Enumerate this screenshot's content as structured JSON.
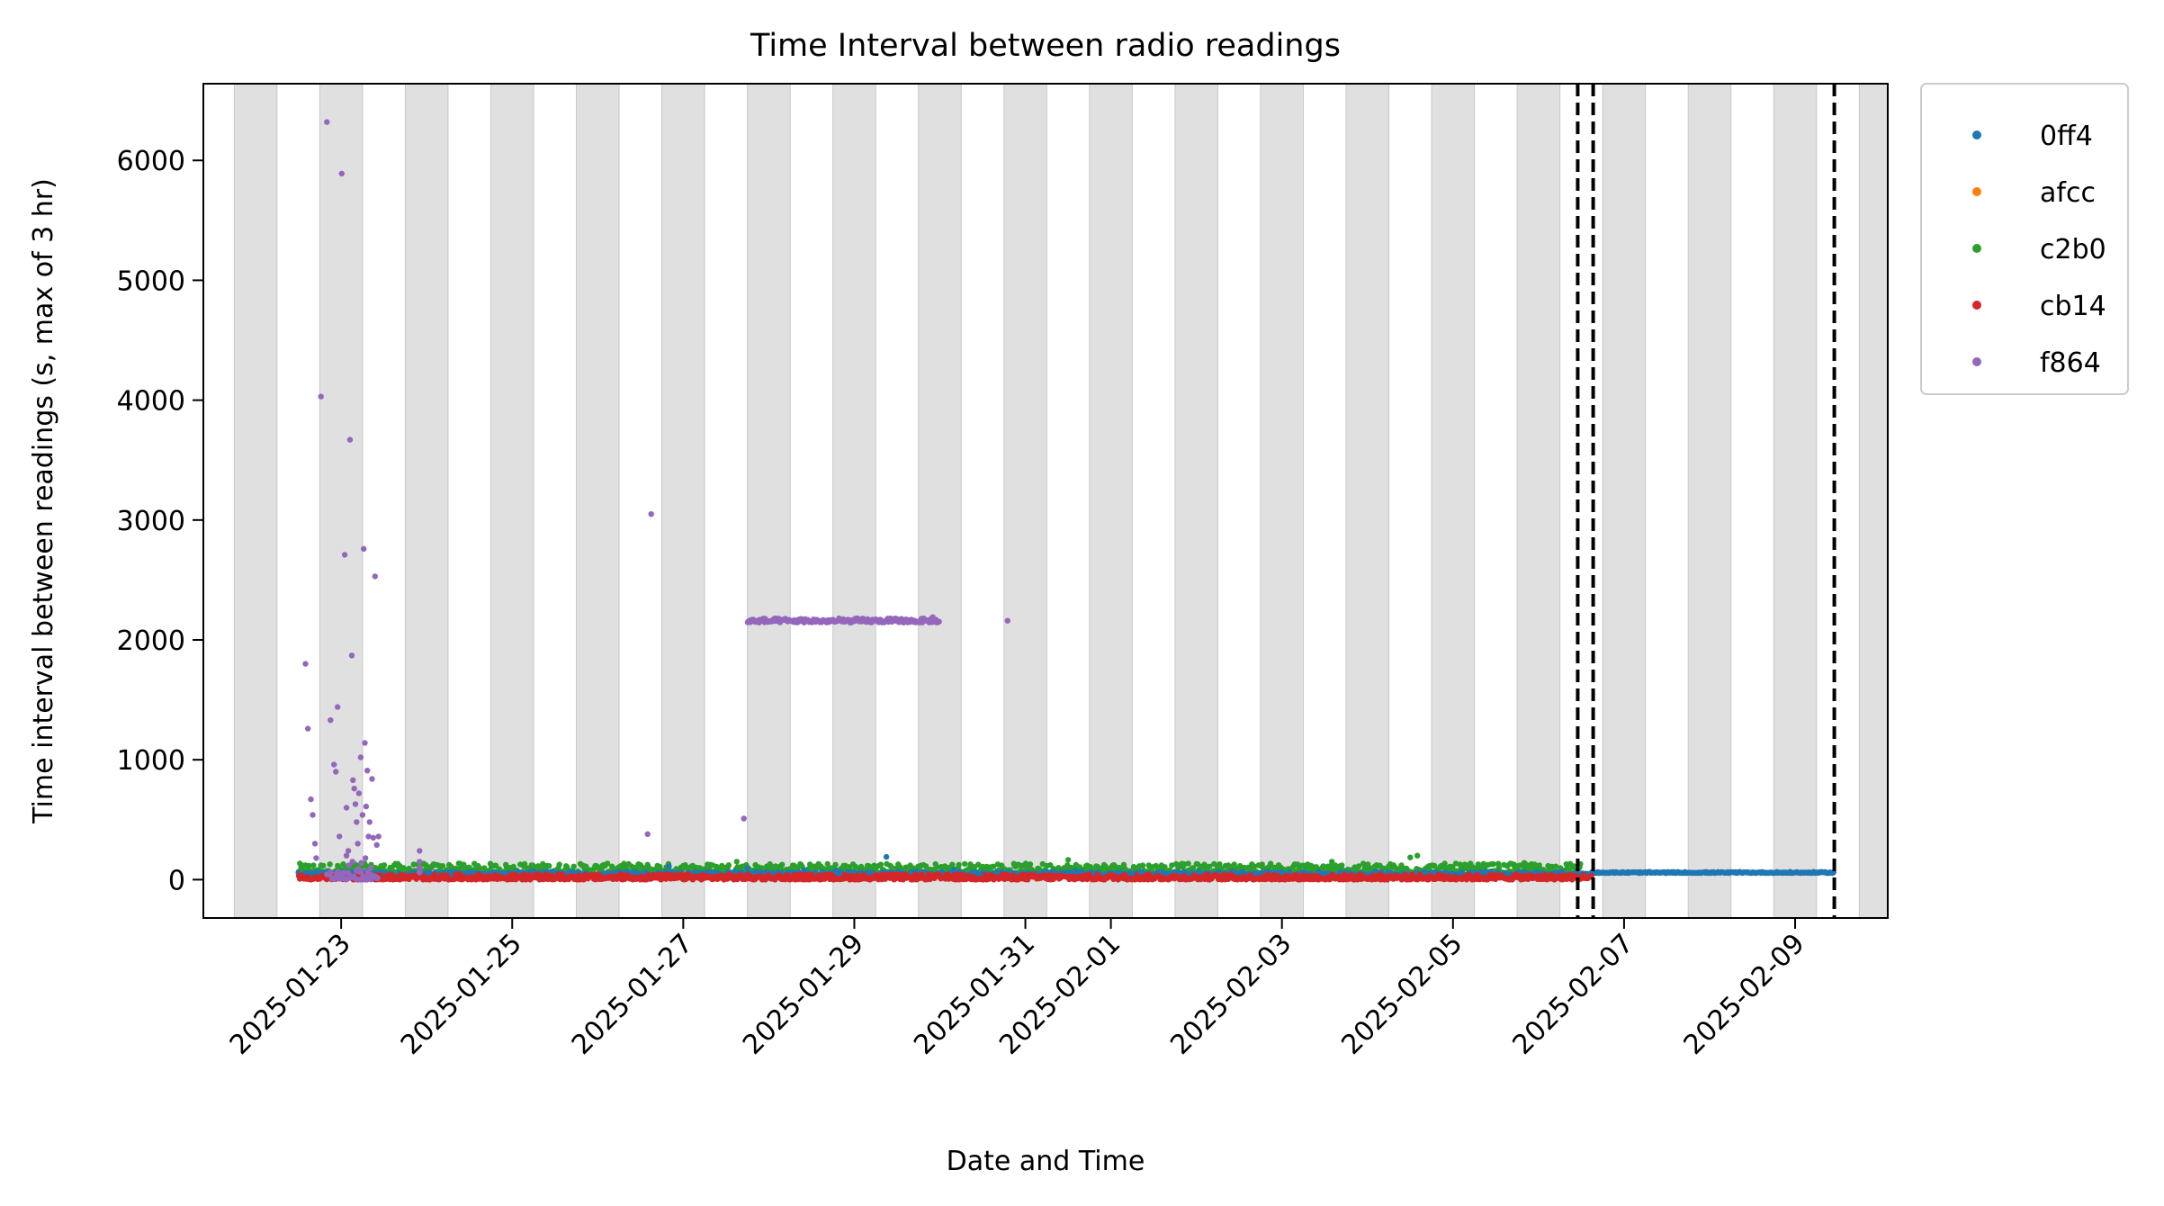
{
  "chart_data": {
    "type": "scatter",
    "title": "Time Interval between radio readings",
    "xlabel": "Date and Time",
    "ylabel": "Time interval between readings (s, max of 3 hr)",
    "x_axis_type": "date",
    "xlim": [
      "2025-01-21 09:20",
      "2025-02-10 02:00"
    ],
    "ylim": [
      -320,
      6640
    ],
    "x_ticks": [
      "2025-01-23",
      "2025-01-25",
      "2025-01-27",
      "2025-01-29",
      "2025-01-31",
      "2025-02-01",
      "2025-02-03",
      "2025-02-05",
      "2025-02-07",
      "2025-02-09"
    ],
    "y_ticks": [
      0,
      1000,
      2000,
      3000,
      4000,
      5000,
      6000
    ],
    "grid": false,
    "background_bands": {
      "color": "#e0e0e0",
      "shading": "night periods, 18:00 to 06:00 each day",
      "start_hour": 18,
      "end_hour": 6
    },
    "vertical_lines": {
      "style": "dashed",
      "color": "#000000",
      "x": [
        "2025-02-06 11:00",
        "2025-02-06 15:20",
        "2025-02-09 11:00"
      ]
    },
    "legend": {
      "placement": "outside-top-right",
      "entries": [
        "0ff4",
        "afcc",
        "c2b0",
        "cb14",
        "f864"
      ]
    },
    "series": [
      {
        "name": "0ff4",
        "color": "#1f77b4",
        "points": [
          [
            "2025-01-22 12:00",
            60
          ],
          [
            "2025-01-23 12:00",
            58
          ],
          [
            "2025-01-25 06:00",
            70
          ],
          [
            "2025-01-26 20:00",
            110
          ],
          [
            "2025-01-27 18:00",
            95
          ],
          [
            "2025-01-28 10:00",
            80
          ],
          [
            "2025-01-28 19:00",
            75
          ],
          [
            "2025-01-29 09:00",
            190
          ],
          [
            "2025-01-30 04:00",
            85
          ],
          [
            "2025-01-31 14:00",
            72
          ],
          [
            "2025-02-02 10:00",
            68
          ]
        ],
        "bands": [
          {
            "x": [
              "2025-01-22 12:00",
              "2025-02-06 15:00"
            ],
            "y": [
              30,
              65
            ]
          },
          {
            "x": [
              "2025-02-06 15:00",
              "2025-02-09 11:00"
            ],
            "y": [
              55,
              65
            ]
          }
        ]
      },
      {
        "name": "afcc",
        "color": "#ff7f0e",
        "points": []
      },
      {
        "name": "c2b0",
        "color": "#2ca02c",
        "points": [
          [
            "2025-01-22 14:00",
            120
          ],
          [
            "2025-01-24 09:00",
            135
          ],
          [
            "2025-01-26 04:00",
            110
          ],
          [
            "2025-01-27 15:00",
            150
          ],
          [
            "2025-01-31 12:00",
            165
          ],
          [
            "2025-02-03 14:00",
            150
          ],
          [
            "2025-02-04 12:00",
            185
          ],
          [
            "2025-02-04 14:00",
            200
          ],
          [
            "2025-02-05 20:00",
            140
          ]
        ],
        "bands": [
          {
            "x": [
              "2025-01-22 12:00",
              "2025-02-06 12:00"
            ],
            "y": [
              55,
              135
            ]
          }
        ]
      },
      {
        "name": "cb14",
        "color": "#d62728",
        "points": [],
        "bands": [
          {
            "x": [
              "2025-01-22 12:00",
              "2025-02-06 15:00"
            ],
            "y": [
              0,
              45
            ]
          }
        ]
      },
      {
        "name": "f864",
        "color": "#9467bd",
        "points": [
          [
            "2025-01-22 14:00",
            1800
          ],
          [
            "2025-01-22 14:40",
            1260
          ],
          [
            "2025-01-22 15:30",
            670
          ],
          [
            "2025-01-22 16:00",
            540
          ],
          [
            "2025-01-22 16:40",
            300
          ],
          [
            "2025-01-22 17:00",
            180
          ],
          [
            "2025-01-22 18:20",
            4030
          ],
          [
            "2025-01-22 20:00",
            6320
          ],
          [
            "2025-01-22 21:00",
            1330
          ],
          [
            "2025-01-22 22:00",
            960
          ],
          [
            "2025-01-22 22:30",
            900
          ],
          [
            "2025-01-22 23:00",
            1440
          ],
          [
            "2025-01-22 23:30",
            360
          ],
          [
            "2025-01-23 00:10",
            5890
          ],
          [
            "2025-01-23 01:00",
            2710
          ],
          [
            "2025-01-23 01:30",
            600
          ],
          [
            "2025-01-23 02:00",
            240
          ],
          [
            "2025-01-23 02:30",
            3670
          ],
          [
            "2025-01-23 03:00",
            1870
          ],
          [
            "2025-01-23 03:20",
            830
          ],
          [
            "2025-01-23 03:40",
            760
          ],
          [
            "2025-01-23 04:00",
            630
          ],
          [
            "2025-01-23 04:20",
            480
          ],
          [
            "2025-01-23 04:40",
            300
          ],
          [
            "2025-01-23 05:00",
            720
          ],
          [
            "2025-01-23 05:30",
            1020
          ],
          [
            "2025-01-23 06:00",
            540
          ],
          [
            "2025-01-23 06:20",
            2760
          ],
          [
            "2025-01-23 06:40",
            1140
          ],
          [
            "2025-01-23 07:00",
            610
          ],
          [
            "2025-01-23 07:20",
            910
          ],
          [
            "2025-01-23 07:40",
            360
          ],
          [
            "2025-01-23 08:00",
            480
          ],
          [
            "2025-01-23 08:40",
            840
          ],
          [
            "2025-01-23 09:00",
            350
          ],
          [
            "2025-01-23 09:30",
            2530
          ],
          [
            "2025-01-23 10:00",
            290
          ],
          [
            "2025-01-23 10:30",
            360
          ],
          [
            "2025-01-23 01:30",
            200
          ],
          [
            "2025-01-23 02:10",
            120
          ],
          [
            "2025-01-23 03:10",
            150
          ],
          [
            "2025-01-23 05:40",
            140
          ],
          [
            "2025-01-23 06:50",
            180
          ],
          [
            "2025-01-23 08:20",
            100
          ],
          [
            "2025-01-23 04:50",
            90
          ],
          [
            "2025-01-23 00:40",
            60
          ],
          [
            "2025-01-23 07:30",
            70
          ],
          [
            "2025-01-23 22:00",
            240
          ],
          [
            "2025-01-23 22:00",
            150
          ],
          [
            "2025-01-23 22:00",
            100
          ],
          [
            "2025-01-23 22:00",
            60
          ],
          [
            "2025-01-26 15:00",
            3050
          ],
          [
            "2025-01-26 14:00",
            380
          ],
          [
            "2025-01-27 17:00",
            510
          ],
          [
            "2025-01-29 22:00",
            2190
          ],
          [
            "2025-01-30 19:00",
            2160
          ]
        ],
        "bands": [
          {
            "x": [
              "2025-01-27 18:00",
              "2025-01-30 00:00"
            ],
            "y": [
              2145,
              2180
            ]
          },
          {
            "x": [
              "2025-01-22 20:00",
              "2025-01-23 10:30"
            ],
            "y": [
              0,
              80
            ]
          }
        ]
      }
    ]
  }
}
